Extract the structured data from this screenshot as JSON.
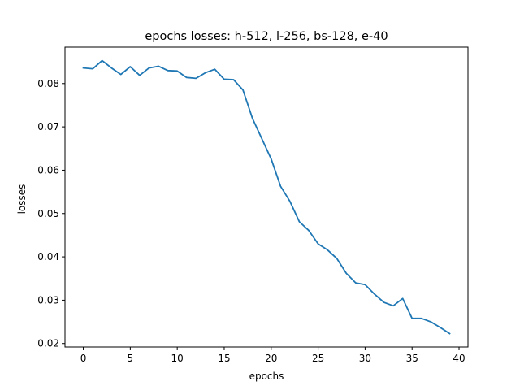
{
  "chart_data": {
    "type": "line",
    "title": "epochs losses: h-512, l-256, bs-128, e-40",
    "xlabel": "epochs",
    "ylabel": "losses",
    "xlim": [
      -1.95,
      40.95
    ],
    "ylim": [
      0.0192,
      0.0884
    ],
    "xticks": [
      0,
      5,
      10,
      15,
      20,
      25,
      30,
      35,
      40
    ],
    "xtick_labels": [
      "0",
      "5",
      "10",
      "15",
      "20",
      "25",
      "30",
      "35",
      "40"
    ],
    "yticks": [
      0.02,
      0.03,
      0.04,
      0.05,
      0.06,
      0.07,
      0.08
    ],
    "ytick_labels": [
      "0.02",
      "0.03",
      "0.04",
      "0.05",
      "0.06",
      "0.07",
      "0.08"
    ],
    "grid": false,
    "series": [
      {
        "color": "#1f77b4",
        "x": [
          0,
          1,
          2,
          3,
          4,
          5,
          6,
          7,
          8,
          9,
          10,
          11,
          12,
          13,
          14,
          15,
          16,
          17,
          18,
          19,
          20,
          21,
          22,
          23,
          24,
          25,
          26,
          27,
          28,
          29,
          30,
          31,
          32,
          33,
          34,
          35,
          36,
          37,
          38,
          39
        ],
        "values": [
          0.0836,
          0.0834,
          0.0853,
          0.0836,
          0.0821,
          0.0839,
          0.0819,
          0.0836,
          0.084,
          0.083,
          0.0829,
          0.0814,
          0.0812,
          0.0825,
          0.0833,
          0.081,
          0.0809,
          0.0785,
          0.072,
          0.0673,
          0.0626,
          0.0563,
          0.0528,
          0.0481,
          0.0461,
          0.043,
          0.0416,
          0.0396,
          0.0362,
          0.034,
          0.0336,
          0.0314,
          0.0295,
          0.0287,
          0.0304,
          0.0258,
          0.0258,
          0.025,
          0.0237,
          0.0223
        ]
      }
    ]
  }
}
